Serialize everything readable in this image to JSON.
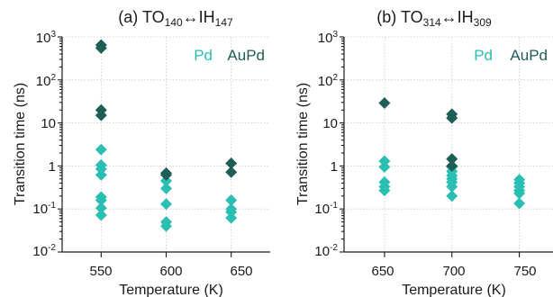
{
  "chart_data": [
    {
      "type": "scatter",
      "title_prefix": "(a)",
      "title_left": "TO",
      "title_left_sub": "140",
      "title_arrow": "↔",
      "title_right": "IH",
      "title_right_sub": "147",
      "xlabel": "Temperature  (K)",
      "ylabel": "Transition time  (ns)",
      "xlim": [
        520,
        680
      ],
      "yscale": "log",
      "ylim": [
        0.01,
        1000
      ],
      "xticks": [
        550,
        600,
        650
      ],
      "xtick_labels": [
        "550",
        "600",
        "650"
      ],
      "yticks": [
        0.01,
        0.1,
        1,
        10,
        100,
        1000
      ],
      "ytick_labels": [
        {
          "base": "10",
          "exp": "-2"
        },
        {
          "base": "10",
          "exp": "-1"
        },
        {
          "base": "1",
          "exp": ""
        },
        {
          "base": "10",
          "exp": ""
        },
        {
          "base": "10",
          "exp": "2"
        },
        {
          "base": "10",
          "exp": "3"
        }
      ],
      "grid": true,
      "legend_position": "top-right",
      "series": [
        {
          "name": "Pd",
          "color": "#2bbfb3",
          "points": [
            {
              "x": 550,
              "y": 2.4
            },
            {
              "x": 550,
              "y": 1.05
            },
            {
              "x": 550,
              "y": 0.85
            },
            {
              "x": 550,
              "y": 0.62
            },
            {
              "x": 550,
              "y": 0.19
            },
            {
              "x": 550,
              "y": 0.16
            },
            {
              "x": 550,
              "y": 0.105
            },
            {
              "x": 550,
              "y": 0.072
            },
            {
              "x": 600,
              "y": 0.45
            },
            {
              "x": 600,
              "y": 0.3
            },
            {
              "x": 600,
              "y": 0.13
            },
            {
              "x": 600,
              "y": 0.05
            },
            {
              "x": 600,
              "y": 0.04
            },
            {
              "x": 650,
              "y": 0.16
            },
            {
              "x": 650,
              "y": 0.1
            },
            {
              "x": 650,
              "y": 0.085
            },
            {
              "x": 650,
              "y": 0.062
            }
          ]
        },
        {
          "name": "AuPd",
          "color": "#1f5e55",
          "points": [
            {
              "x": 550,
              "y": 650
            },
            {
              "x": 550,
              "y": 550
            },
            {
              "x": 550,
              "y": 20
            },
            {
              "x": 550,
              "y": 15
            },
            {
              "x": 600,
              "y": 0.68
            },
            {
              "x": 600,
              "y": 0.62
            },
            {
              "x": 650,
              "y": 1.15
            },
            {
              "x": 650,
              "y": 0.72
            }
          ]
        }
      ]
    },
    {
      "type": "scatter",
      "title_prefix": "(b)",
      "title_left": "TO",
      "title_left_sub": "314",
      "title_arrow": "↔",
      "title_right": "IH",
      "title_right_sub": "309",
      "xlabel": "Temperature  (K)",
      "ylabel": "Transition time  (ns)",
      "xlim": [
        620,
        775
      ],
      "yscale": "log",
      "ylim": [
        0.01,
        1000
      ],
      "xticks": [
        650,
        700,
        750
      ],
      "xtick_labels": [
        "650",
        "700",
        "750"
      ],
      "yticks": [
        0.01,
        0.1,
        1,
        10,
        100,
        1000
      ],
      "ytick_labels": [
        {
          "base": "10",
          "exp": "-2"
        },
        {
          "base": "10",
          "exp": "-1"
        },
        {
          "base": "1",
          "exp": ""
        },
        {
          "base": "10",
          "exp": ""
        },
        {
          "base": "10",
          "exp": "2"
        },
        {
          "base": "10",
          "exp": "3"
        }
      ],
      "grid": true,
      "legend_position": "top-right",
      "series": [
        {
          "name": "Pd",
          "color": "#2bbfb3",
          "points": [
            {
              "x": 650,
              "y": 1.3
            },
            {
              "x": 650,
              "y": 0.95
            },
            {
              "x": 650,
              "y": 0.42
            },
            {
              "x": 650,
              "y": 0.33
            },
            {
              "x": 650,
              "y": 0.27
            },
            {
              "x": 700,
              "y": 0.95
            },
            {
              "x": 700,
              "y": 0.75
            },
            {
              "x": 700,
              "y": 0.6
            },
            {
              "x": 700,
              "y": 0.5
            },
            {
              "x": 700,
              "y": 0.42
            },
            {
              "x": 700,
              "y": 0.33
            },
            {
              "x": 700,
              "y": 0.2
            },
            {
              "x": 750,
              "y": 0.48
            },
            {
              "x": 750,
              "y": 0.4
            },
            {
              "x": 750,
              "y": 0.33
            },
            {
              "x": 750,
              "y": 0.27
            },
            {
              "x": 750,
              "y": 0.23
            },
            {
              "x": 750,
              "y": 0.135
            }
          ]
        },
        {
          "name": "AuPd",
          "color": "#1f5e55",
          "points": [
            {
              "x": 650,
              "y": 29
            },
            {
              "x": 700,
              "y": 16
            },
            {
              "x": 700,
              "y": 13
            },
            {
              "x": 700,
              "y": 1.45
            },
            {
              "x": 700,
              "y": 1.0
            }
          ]
        }
      ]
    }
  ]
}
